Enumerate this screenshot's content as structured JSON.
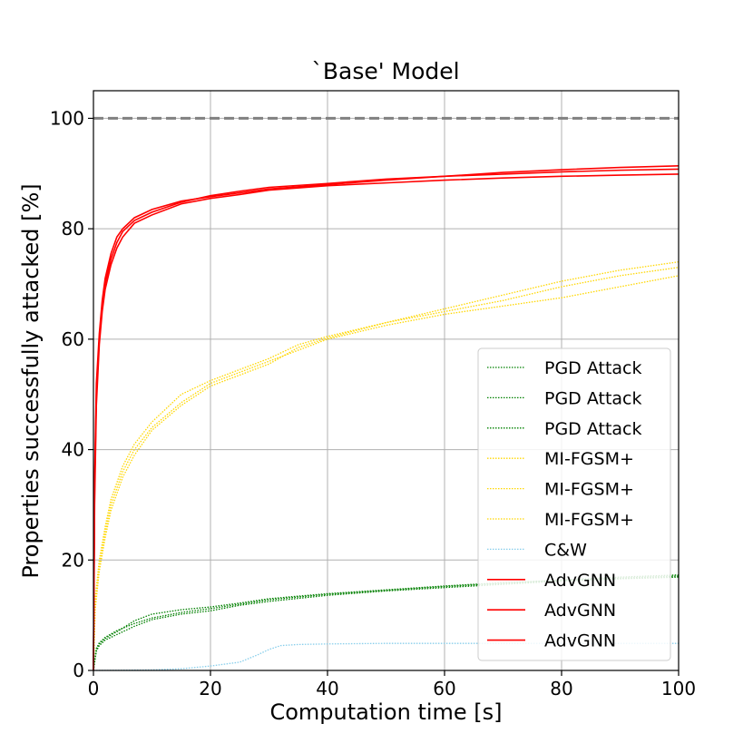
{
  "chart_data": {
    "type": "line",
    "title": "`Base' Model",
    "xlabel": "Computation time [s]",
    "ylabel": "Properties successfully attacked [%]",
    "xlim": [
      0,
      100
    ],
    "ylim": [
      0,
      105
    ],
    "xticks": [
      0,
      20,
      40,
      60,
      80,
      100
    ],
    "yticks": [
      0,
      20,
      40,
      60,
      80,
      100
    ],
    "grid": true,
    "legend_position": "center-right",
    "reference_line": {
      "y": 100,
      "style": "dashed",
      "color": "#808080"
    },
    "colors": {
      "pgd": "#008000",
      "mifgsm": "#FFD700",
      "cw": "#87CEEB",
      "advgnn": "#FF0000"
    },
    "series": [
      {
        "name": "PGD Attack",
        "color": "#008000",
        "style": "dotted",
        "x": [
          0,
          0.5,
          1,
          2,
          4,
          7,
          10,
          15,
          20,
          25,
          30,
          40,
          50,
          60,
          70,
          80,
          90,
          100
        ],
        "y": [
          0,
          4.0,
          5.0,
          6.0,
          7.2,
          8.5,
          9.5,
          10.5,
          11.2,
          12.0,
          12.8,
          13.8,
          14.5,
          15.2,
          15.8,
          16.4,
          16.9,
          17.3
        ]
      },
      {
        "name": "PGD Attack",
        "color": "#008000",
        "style": "dotted",
        "x": [
          0,
          0.5,
          1,
          2,
          4,
          7,
          10,
          15,
          20,
          25,
          30,
          40,
          50,
          60,
          70,
          80,
          90,
          100
        ],
        "y": [
          0,
          3.8,
          4.8,
          5.8,
          7.0,
          9.0,
          10.2,
          11.0,
          11.5,
          12.2,
          13.0,
          13.9,
          14.6,
          15.3,
          15.9,
          16.3,
          16.7,
          17.1
        ]
      },
      {
        "name": "PGD Attack",
        "color": "#008000",
        "style": "dotted",
        "x": [
          0,
          0.5,
          1,
          2,
          4,
          7,
          10,
          15,
          20,
          25,
          30,
          40,
          50,
          60,
          70,
          80,
          90,
          100
        ],
        "y": [
          0,
          3.5,
          4.5,
          5.5,
          6.5,
          8.0,
          9.2,
          10.2,
          10.8,
          11.8,
          12.5,
          13.6,
          14.4,
          15.0,
          15.6,
          16.2,
          16.6,
          16.9
        ]
      },
      {
        "name": "MI-FGSM+",
        "color": "#FFD700",
        "style": "dotted",
        "x": [
          0,
          0.3,
          1,
          2,
          3,
          5,
          7,
          10,
          15,
          20,
          25,
          30,
          35,
          40,
          50,
          60,
          70,
          80,
          90,
          100
        ],
        "y": [
          0,
          13,
          20,
          26,
          31,
          37,
          41,
          45,
          50,
          52.5,
          54.5,
          56.5,
          59,
          60.5,
          63,
          65.5,
          68,
          70.5,
          72.5,
          74
        ]
      },
      {
        "name": "MI-FGSM+",
        "color": "#FFD700",
        "style": "dotted",
        "x": [
          0,
          0.3,
          1,
          2,
          3,
          5,
          7,
          10,
          15,
          20,
          25,
          30,
          35,
          40,
          50,
          60,
          70,
          80,
          90,
          100
        ],
        "y": [
          0,
          12,
          19,
          25,
          30,
          36,
          40,
          44,
          48.5,
          52,
          54,
          56,
          58,
          60,
          62.5,
          64.5,
          66,
          67.5,
          69.5,
          71.5
        ]
      },
      {
        "name": "MI-FGSM+",
        "color": "#FFD700",
        "style": "dotted",
        "x": [
          0,
          0.3,
          1,
          2,
          3,
          5,
          7,
          10,
          15,
          20,
          25,
          30,
          35,
          40,
          50,
          60,
          70,
          80,
          90,
          100
        ],
        "y": [
          0,
          11,
          18,
          24,
          29,
          35,
          39,
          43.5,
          48,
          51.5,
          53.5,
          55.5,
          58.5,
          60.2,
          63,
          65,
          67,
          69.5,
          71.5,
          73
        ]
      },
      {
        "name": "C&W",
        "color": "#87CEEB",
        "style": "dotted",
        "x": [
          0,
          10,
          15,
          20,
          25,
          28,
          30,
          32,
          35,
          40,
          50,
          60,
          70,
          80,
          90,
          100
        ],
        "y": [
          0,
          0.1,
          0.3,
          0.8,
          1.5,
          2.8,
          3.8,
          4.5,
          4.7,
          4.8,
          4.9,
          4.9,
          4.9,
          4.9,
          4.9,
          4.9
        ]
      },
      {
        "name": "AdvGNN",
        "color": "#FF0000",
        "style": "solid",
        "x": [
          0,
          0.2,
          0.5,
          1,
          1.5,
          2,
          3,
          4,
          5,
          7,
          10,
          15,
          20,
          25,
          30,
          40,
          50,
          60,
          70,
          80,
          90,
          100
        ],
        "y": [
          0,
          35,
          52,
          61,
          67,
          71,
          75.5,
          78.5,
          80,
          82,
          83.5,
          85,
          85.8,
          86.5,
          87.2,
          88,
          88.8,
          89.5,
          90.2,
          90.7,
          91.1,
          91.4
        ]
      },
      {
        "name": "AdvGNN",
        "color": "#FF0000",
        "style": "solid",
        "x": [
          0,
          0.2,
          0.5,
          1,
          1.5,
          2,
          3,
          4,
          5,
          7,
          10,
          15,
          20,
          25,
          30,
          40,
          50,
          60,
          70,
          80,
          90,
          100
        ],
        "y": [
          0,
          33,
          50,
          60,
          66,
          70,
          74.5,
          77.5,
          79.5,
          81.5,
          83,
          84.8,
          86,
          86.8,
          87.5,
          88.2,
          89,
          89.5,
          89.9,
          90.3,
          90.6,
          90.8
        ]
      },
      {
        "name": "AdvGNN",
        "color": "#FF0000",
        "style": "solid",
        "x": [
          0,
          0.2,
          0.5,
          1,
          1.5,
          2,
          3,
          4,
          5,
          7,
          10,
          15,
          20,
          25,
          30,
          40,
          50,
          60,
          70,
          80,
          90,
          100
        ],
        "y": [
          0,
          30,
          48,
          59,
          65,
          69,
          73.5,
          76.5,
          78.5,
          81,
          82.5,
          84.5,
          85.5,
          86.2,
          87,
          87.8,
          88.3,
          88.8,
          89.2,
          89.5,
          89.7,
          89.9
        ]
      }
    ]
  }
}
